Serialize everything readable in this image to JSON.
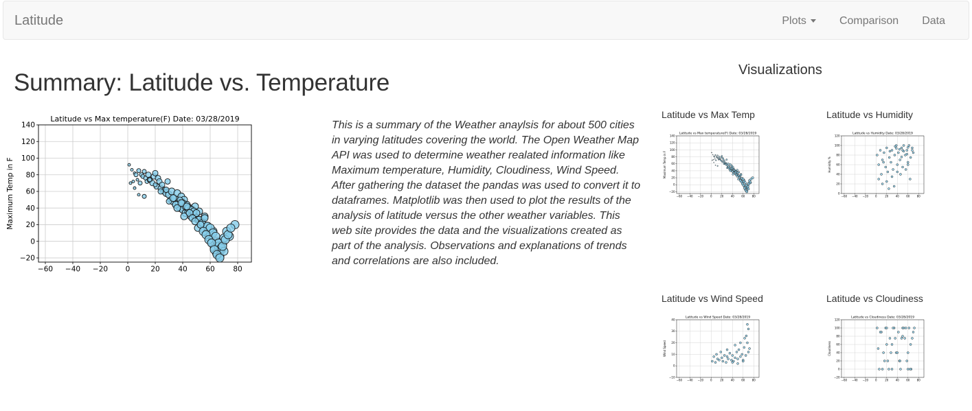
{
  "navbar": {
    "brand": "Latitude",
    "links": [
      {
        "label": "Plots",
        "dropdown": true
      },
      {
        "label": "Comparison",
        "dropdown": false
      },
      {
        "label": "Data",
        "dropdown": false
      }
    ]
  },
  "main": {
    "title": "Summary: Latitude vs. Temperature",
    "summary": "This is a summary of the Weather anaylsis for about 500 cities in varying latitudes covering the world. The Open Weather Map API was used to determine weather realated information like Maximum temperature, Humidity, Cloudiness, Wind Speed. After gathering the dataset the pandas was used to convert it to dataframes. Matplotlib was then used to plot the results of the analysis of latitude versus the other weather variables. This web site provides the data and the visualizations created as part of the analysis. Observations and explanations of trends and correlations are also included."
  },
  "visualizations": {
    "title": "Visualizations",
    "items": [
      {
        "label": "Latitude vs Max Temp"
      },
      {
        "label": "Latitude vs Humidity"
      },
      {
        "label": "Latitude vs Wind Speed"
      },
      {
        "label": "Latitude vs Cloudiness"
      }
    ]
  },
  "colors": {
    "marker_fill": "#87ceeb",
    "marker_edge": "#1a1a1a",
    "grid": "#cccccc"
  },
  "chart_data": [
    {
      "type": "scatter",
      "title": "Latitude vs Max temperature(F) Date: 03/28/2019",
      "xlabel": "",
      "ylabel": "Maximum Temp in F",
      "xlim": [
        -65,
        90
      ],
      "ylim": [
        -25,
        140
      ],
      "xticks": [
        -60,
        -40,
        -20,
        0,
        20,
        40,
        60,
        80
      ],
      "yticks": [
        -20,
        0,
        20,
        40,
        60,
        80,
        100,
        120,
        140
      ],
      "grid": true,
      "x": [
        1,
        2,
        3,
        4,
        5,
        6,
        7,
        8,
        9,
        10,
        11,
        12,
        13,
        14,
        15,
        16,
        18,
        19,
        20,
        21,
        22,
        23,
        24,
        25,
        26,
        27,
        28,
        29,
        30,
        31,
        32,
        33,
        34,
        35,
        36,
        37,
        38,
        39,
        40,
        41,
        42,
        43,
        44,
        45,
        46,
        47,
        48,
        49,
        50,
        51,
        52,
        53,
        54,
        55,
        56,
        57,
        58,
        59,
        60,
        61,
        62,
        63,
        64,
        65,
        66,
        67,
        68,
        69,
        70,
        72,
        74,
        78,
        5,
        8,
        12,
        16,
        20,
        24,
        28,
        30,
        33,
        35,
        38,
        40,
        42,
        44,
        46,
        48,
        50,
        52,
        54,
        56,
        58,
        60,
        62,
        64,
        66,
        68,
        70,
        36,
        39,
        41,
        43,
        45,
        47,
        49,
        51,
        53,
        55,
        57,
        59,
        61,
        63,
        65,
        67,
        69,
        71,
        73,
        75
      ],
      "y": [
        92,
        70,
        86,
        72,
        82,
        80,
        74,
        85,
        70,
        80,
        78,
        84,
        76,
        72,
        80,
        74,
        70,
        78,
        82,
        66,
        76,
        72,
        64,
        68,
        60,
        62,
        58,
        72,
        56,
        50,
        60,
        48,
        52,
        44,
        58,
        46,
        40,
        54,
        38,
        50,
        34,
        44,
        36,
        40,
        30,
        38,
        32,
        42,
        28,
        26,
        36,
        20,
        24,
        14,
        30,
        10,
        18,
        4,
        8,
        -2,
        12,
        -8,
        -14,
        0,
        -6,
        -18,
        -10,
        -4,
        4,
        12,
        6,
        20,
        64,
        56,
        54,
        74,
        68,
        60,
        62,
        48,
        52,
        44,
        50,
        46,
        42,
        40,
        38,
        36,
        34,
        26,
        22,
        28,
        18,
        16,
        10,
        6,
        -2,
        -8,
        -12,
        40,
        46,
        30,
        42,
        34,
        28,
        24,
        16,
        20,
        12,
        8,
        2,
        -2,
        -10,
        -16,
        -20,
        -6,
        2,
        8,
        16
      ],
      "sizes": [
        2,
        2,
        2,
        2,
        2,
        3,
        2,
        3,
        3,
        3,
        3,
        3,
        3,
        3,
        4,
        4,
        4,
        4,
        4,
        4,
        4,
        4,
        4,
        4,
        4,
        4,
        5,
        4,
        5,
        4,
        5,
        5,
        5,
        5,
        5,
        5,
        5,
        5,
        5,
        5,
        5,
        5,
        5,
        5,
        5,
        5,
        5,
        5,
        5,
        5,
        5,
        5,
        5,
        5,
        5,
        5,
        6,
        5,
        6,
        5,
        6,
        6,
        5,
        6,
        6,
        6,
        6,
        6,
        6,
        6,
        6,
        6,
        2,
        2,
        3,
        3,
        3,
        4,
        4,
        4,
        5,
        5,
        4,
        5,
        5,
        5,
        5,
        5,
        5,
        5,
        5,
        5,
        6,
        6,
        6,
        6,
        6,
        6,
        6,
        5,
        5,
        5,
        5,
        5,
        5,
        5,
        5,
        5,
        6,
        6,
        6,
        6,
        6,
        6,
        6,
        6,
        6,
        6,
        6
      ]
    },
    {
      "type": "scatter",
      "title": "Latitude vs Max temperature(F) Date: 03/28/2019",
      "ylabel": "Maximum Temp in F",
      "xlim": [
        -65,
        90
      ],
      "ylim": [
        -25,
        140
      ],
      "xticks": [
        -60,
        -40,
        -20,
        0,
        20,
        40,
        60,
        80
      ],
      "yticks": [
        -20,
        0,
        20,
        40,
        60,
        80,
        100,
        120,
        140
      ],
      "grid": true
    },
    {
      "type": "scatter",
      "title": "Latitude vs Humidity Date: 03/28/2019",
      "ylabel": "Humidity %",
      "xlim": [
        -65,
        90
      ],
      "ylim": [
        0,
        120
      ],
      "xticks": [
        -60,
        -40,
        -20,
        0,
        20,
        40,
        60,
        80
      ],
      "yticks": [
        0,
        20,
        40,
        60,
        80,
        100,
        120
      ],
      "grid": true,
      "x": [
        2,
        5,
        8,
        10,
        12,
        15,
        18,
        20,
        22,
        25,
        28,
        30,
        32,
        35,
        38,
        40,
        42,
        45,
        48,
        50,
        52,
        55,
        58,
        60,
        62,
        65,
        68,
        70,
        5,
        12,
        20,
        30,
        40,
        50,
        60,
        36,
        44,
        52,
        60,
        68,
        24,
        34,
        46,
        56,
        64,
        14,
        26,
        38,
        48,
        58
      ],
      "y": [
        80,
        60,
        90,
        40,
        70,
        85,
        55,
        95,
        45,
        75,
        65,
        90,
        50,
        80,
        100,
        60,
        85,
        70,
        95,
        55,
        100,
        80,
        90,
        65,
        100,
        75,
        95,
        85,
        30,
        20,
        25,
        35,
        45,
        90,
        60,
        98,
        92,
        88,
        96,
        90,
        10,
        15,
        40,
        50,
        30,
        65,
        88,
        94,
        76,
        82
      ]
    },
    {
      "type": "scatter",
      "title": "Latitude vs Wind Speed Date: 03/28/2019",
      "ylabel": "Wind Speed",
      "xlim": [
        -65,
        90
      ],
      "ylim": [
        -10,
        40
      ],
      "xticks": [
        -60,
        -40,
        -20,
        0,
        20,
        40,
        60,
        80
      ],
      "yticks": [
        -10,
        0,
        10,
        20,
        30,
        40
      ],
      "grid": true,
      "x": [
        2,
        5,
        8,
        10,
        12,
        15,
        18,
        20,
        22,
        25,
        28,
        30,
        32,
        35,
        38,
        40,
        42,
        45,
        48,
        50,
        52,
        55,
        58,
        60,
        62,
        65,
        68,
        70,
        72,
        40,
        50,
        60,
        66,
        70,
        30,
        45,
        55,
        63,
        68
      ],
      "y": [
        4,
        8,
        3,
        10,
        6,
        5,
        12,
        7,
        4,
        9,
        3,
        8,
        6,
        11,
        5,
        9,
        4,
        7,
        12,
        6,
        14,
        8,
        10,
        5,
        16,
        9,
        20,
        12,
        15,
        3,
        2,
        4,
        26,
        32,
        14,
        18,
        20,
        24,
        36
      ]
    },
    {
      "type": "scatter",
      "title": "Latitude vs Cloudiness Date: 03/28/2019",
      "ylabel": "Cloudiness",
      "xlim": [
        -65,
        90
      ],
      "ylim": [
        -20,
        120
      ],
      "xticks": [
        -60,
        -40,
        -20,
        0,
        20,
        40,
        60,
        80
      ],
      "yticks": [
        -20,
        0,
        20,
        40,
        60,
        80,
        100,
        120
      ],
      "grid": true,
      "x": [
        2,
        6,
        10,
        14,
        18,
        22,
        26,
        30,
        34,
        38,
        42,
        46,
        50,
        54,
        58,
        62,
        66,
        70,
        4,
        12,
        20,
        28,
        36,
        44,
        52,
        60,
        68,
        8,
        16,
        24,
        32,
        40,
        48,
        56,
        64,
        72,
        30,
        45,
        60,
        20,
        50,
        65
      ],
      "y": [
        100,
        0,
        90,
        40,
        100,
        20,
        75,
        0,
        100,
        40,
        90,
        0,
        100,
        75,
        20,
        100,
        0,
        90,
        50,
        0,
        100,
        40,
        75,
        20,
        100,
        0,
        75,
        90,
        20,
        0,
        100,
        40,
        75,
        100,
        0,
        100,
        60,
        20,
        40,
        60,
        80,
        60
      ]
    }
  ]
}
